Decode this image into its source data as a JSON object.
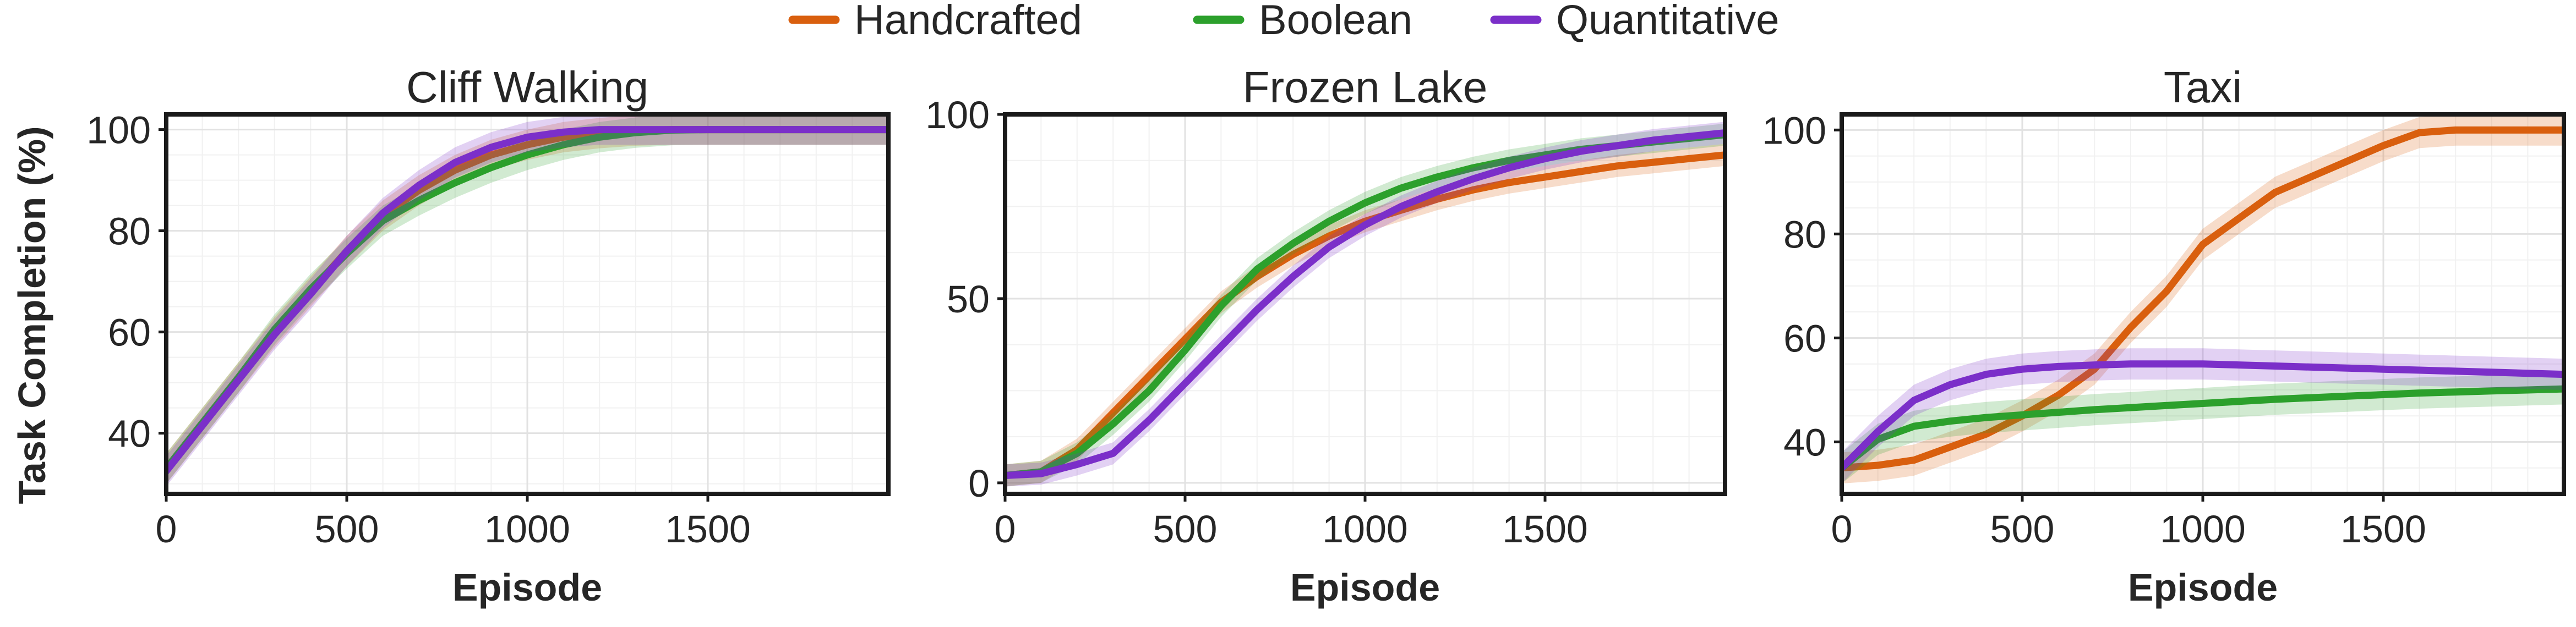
{
  "legend": [
    {
      "name": "Handcrafted",
      "color": "#d95f0e"
    },
    {
      "name": "Boolean",
      "color": "#2ca02c"
    },
    {
      "name": "Quantitative",
      "color": "#7b2fc9"
    }
  ],
  "shared_ylabel": "Task Completion (%)",
  "chart_data": [
    {
      "type": "line",
      "title": "Cliff Walking",
      "xlabel": "Episode",
      "ylabel": "Task Completion (%)",
      "xlim": [
        0,
        2000
      ],
      "ylim": [
        28,
        103
      ],
      "xticks": [
        0,
        500,
        1000,
        1500
      ],
      "yticks": [
        40,
        60,
        80,
        100
      ],
      "grid": true,
      "x": [
        0,
        100,
        200,
        300,
        400,
        500,
        600,
        700,
        800,
        900,
        1000,
        1100,
        1200,
        1300,
        1400,
        1500,
        1600,
        1700,
        1800,
        1900,
        2000
      ],
      "series": [
        {
          "name": "Handcrafted",
          "color": "#d95f0e",
          "values": [
            33,
            42,
            51,
            60,
            68,
            76,
            83,
            88,
            92,
            95,
            97,
            98.5,
            99.3,
            99.8,
            100,
            100,
            100,
            100,
            100,
            100,
            100
          ]
        },
        {
          "name": "Boolean",
          "color": "#2ca02c",
          "values": [
            33,
            42,
            51,
            60.5,
            68.5,
            75.5,
            82,
            86,
            89.5,
            92.5,
            95,
            97,
            98.5,
            99.4,
            99.9,
            100,
            100,
            100,
            100,
            100,
            100
          ]
        },
        {
          "name": "Quantitative",
          "color": "#7b2fc9",
          "values": [
            32.5,
            41.5,
            50.5,
            59.5,
            67.5,
            76,
            83.5,
            89,
            93.5,
            96.5,
            98.5,
            99.5,
            100,
            100,
            100,
            100,
            100,
            100,
            100,
            100,
            100
          ]
        }
      ]
    },
    {
      "type": "line",
      "title": "Frozen Lake",
      "xlabel": "Episode",
      "ylabel": "",
      "xlim": [
        0,
        2000
      ],
      "ylim": [
        -3,
        100
      ],
      "xticks": [
        0,
        500,
        1000,
        1500
      ],
      "yticks": [
        0,
        50,
        100
      ],
      "grid": true,
      "x": [
        0,
        100,
        200,
        300,
        400,
        500,
        600,
        700,
        800,
        900,
        1000,
        1100,
        1200,
        1300,
        1400,
        1500,
        1600,
        1700,
        1800,
        1900,
        2000
      ],
      "series": [
        {
          "name": "Handcrafted",
          "color": "#d95f0e",
          "values": [
            2,
            3,
            9,
            19,
            29,
            39,
            49,
            56,
            62,
            67,
            71,
            74,
            77,
            79.5,
            81.5,
            83,
            84.5,
            86,
            87,
            88,
            89
          ]
        },
        {
          "name": "Boolean",
          "color": "#2ca02c",
          "values": [
            2,
            3,
            8,
            16,
            25,
            36,
            48,
            58,
            65,
            71,
            76,
            80,
            83,
            85.5,
            87.5,
            89,
            90.5,
            91.5,
            92.5,
            93.5,
            94.5
          ]
        },
        {
          "name": "Quantitative",
          "color": "#7b2fc9",
          "values": [
            2,
            2.5,
            5,
            8,
            17,
            27,
            37,
            47,
            56,
            64,
            70,
            75,
            79,
            82.5,
            85.5,
            88,
            90,
            91.5,
            93,
            94,
            95
          ]
        }
      ]
    },
    {
      "type": "line",
      "title": "Taxi",
      "xlabel": "Episode",
      "ylabel": "",
      "xlim": [
        0,
        2000
      ],
      "ylim": [
        30,
        103
      ],
      "xticks": [
        0,
        500,
        1000,
        1500
      ],
      "yticks": [
        40,
        60,
        80,
        100
      ],
      "grid": true,
      "x": [
        0,
        100,
        200,
        300,
        400,
        500,
        600,
        700,
        800,
        900,
        1000,
        1100,
        1200,
        1300,
        1400,
        1500,
        1600,
        1700,
        1800,
        1900,
        2000
      ],
      "series": [
        {
          "name": "Handcrafted",
          "color": "#d95f0e",
          "values": [
            35,
            35.5,
            36.5,
            39,
            41.5,
            45,
            49,
            54,
            62,
            69,
            78,
            83,
            88,
            91,
            94,
            97,
            99.5,
            100,
            100,
            100,
            100
          ]
        },
        {
          "name": "Boolean",
          "color": "#2ca02c",
          "values": [
            35,
            40.5,
            43,
            44,
            44.7,
            45.2,
            45.7,
            46.2,
            46.6,
            47,
            47.4,
            47.8,
            48.2,
            48.5,
            48.8,
            49.1,
            49.4,
            49.6,
            49.8,
            50,
            50.2
          ]
        },
        {
          "name": "Quantitative",
          "color": "#7b2fc9",
          "values": [
            35,
            42,
            48,
            51,
            53,
            54,
            54.5,
            54.8,
            55,
            55,
            55,
            54.8,
            54.6,
            54.4,
            54.2,
            54,
            53.8,
            53.6,
            53.4,
            53.2,
            53
          ]
        }
      ]
    }
  ]
}
